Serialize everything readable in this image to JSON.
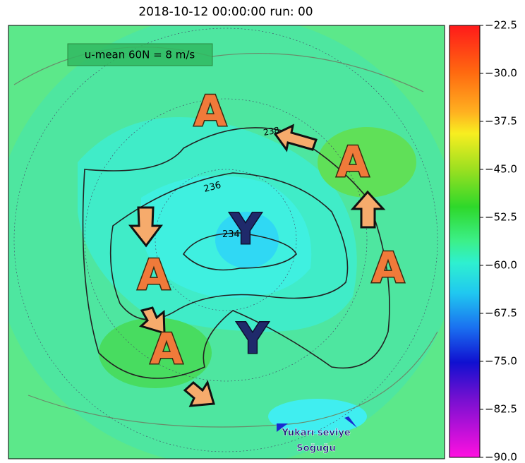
{
  "title": "2018-10-12 00:00:00 run: 00",
  "annotation": "u-mean 60N = 8 m/s",
  "contour_labels": [
    "238",
    "236",
    "234"
  ],
  "markers": [
    "A",
    "A",
    "A",
    "A",
    "A",
    "Y",
    "Y"
  ],
  "note": [
    "Yukarı seviye",
    "Soğuğu"
  ],
  "colorbar": {
    "ticks": [
      "−22.5",
      "−30.0",
      "−37.5",
      "−45.0",
      "−52.5",
      "−60.0",
      "−67.5",
      "−75.0",
      "−82.5",
      "−90.0"
    ]
  }
}
